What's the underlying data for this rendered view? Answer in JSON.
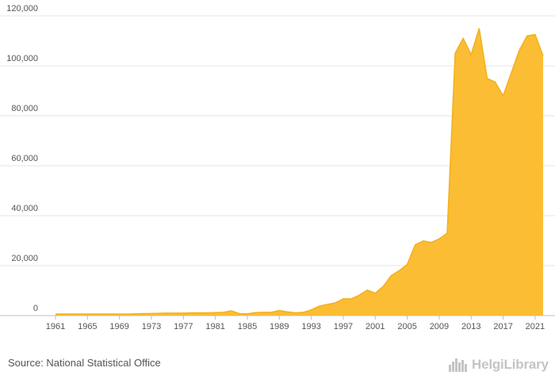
{
  "chart_data": {
    "type": "area",
    "title": "",
    "xlabel": "",
    "ylabel": "",
    "x": [
      1961,
      1962,
      1963,
      1964,
      1965,
      1966,
      1967,
      1968,
      1969,
      1970,
      1971,
      1972,
      1973,
      1974,
      1975,
      1976,
      1977,
      1978,
      1979,
      1980,
      1981,
      1982,
      1983,
      1984,
      1985,
      1986,
      1987,
      1988,
      1989,
      1990,
      1991,
      1992,
      1993,
      1994,
      1995,
      1996,
      1997,
      1998,
      1999,
      2000,
      2001,
      2002,
      2003,
      2004,
      2005,
      2006,
      2007,
      2008,
      2009,
      2010,
      2011,
      2012,
      2013,
      2014,
      2015,
      2016,
      2017,
      2018,
      2019,
      2020,
      2021,
      2022
    ],
    "series": [
      {
        "values": [
          600,
          650,
          650,
          650,
          650,
          650,
          650,
          650,
          650,
          600,
          700,
          800,
          850,
          900,
          1000,
          1000,
          1000,
          1100,
          1100,
          1100,
          1200,
          1300,
          1900,
          800,
          700,
          1200,
          1300,
          1300,
          2000,
          1500,
          1100,
          1300,
          2300,
          3800,
          4500,
          5100,
          6700,
          6700,
          8200,
          10200,
          9000,
          11700,
          16000,
          18000,
          20500,
          28300,
          29900,
          29300,
          30700,
          33000,
          105000,
          111000,
          104500,
          115000,
          95000,
          93500,
          88000,
          97000,
          106000,
          112000,
          112500,
          104000
        ]
      }
    ],
    "colors": {
      "area": "#fbbd33",
      "line": "#f2b01e"
    },
    "ylim": [
      0,
      120000
    ],
    "y_ticks": [
      "0",
      "20,000",
      "40,000",
      "60,000",
      "80,000",
      "100,000",
      "120,000"
    ],
    "x_ticks": [
      "1961",
      "1965",
      "1969",
      "1973",
      "1977",
      "1981",
      "1985",
      "1989",
      "1993",
      "1997",
      "2001",
      "2005",
      "2009",
      "2013",
      "2017",
      "2021"
    ],
    "grid": true,
    "legend": "none"
  },
  "footer": {
    "source": "Source: National Statistical Office",
    "logo_text": "HelgiLibrary",
    "logo_icon": "city-skyline-icon"
  }
}
